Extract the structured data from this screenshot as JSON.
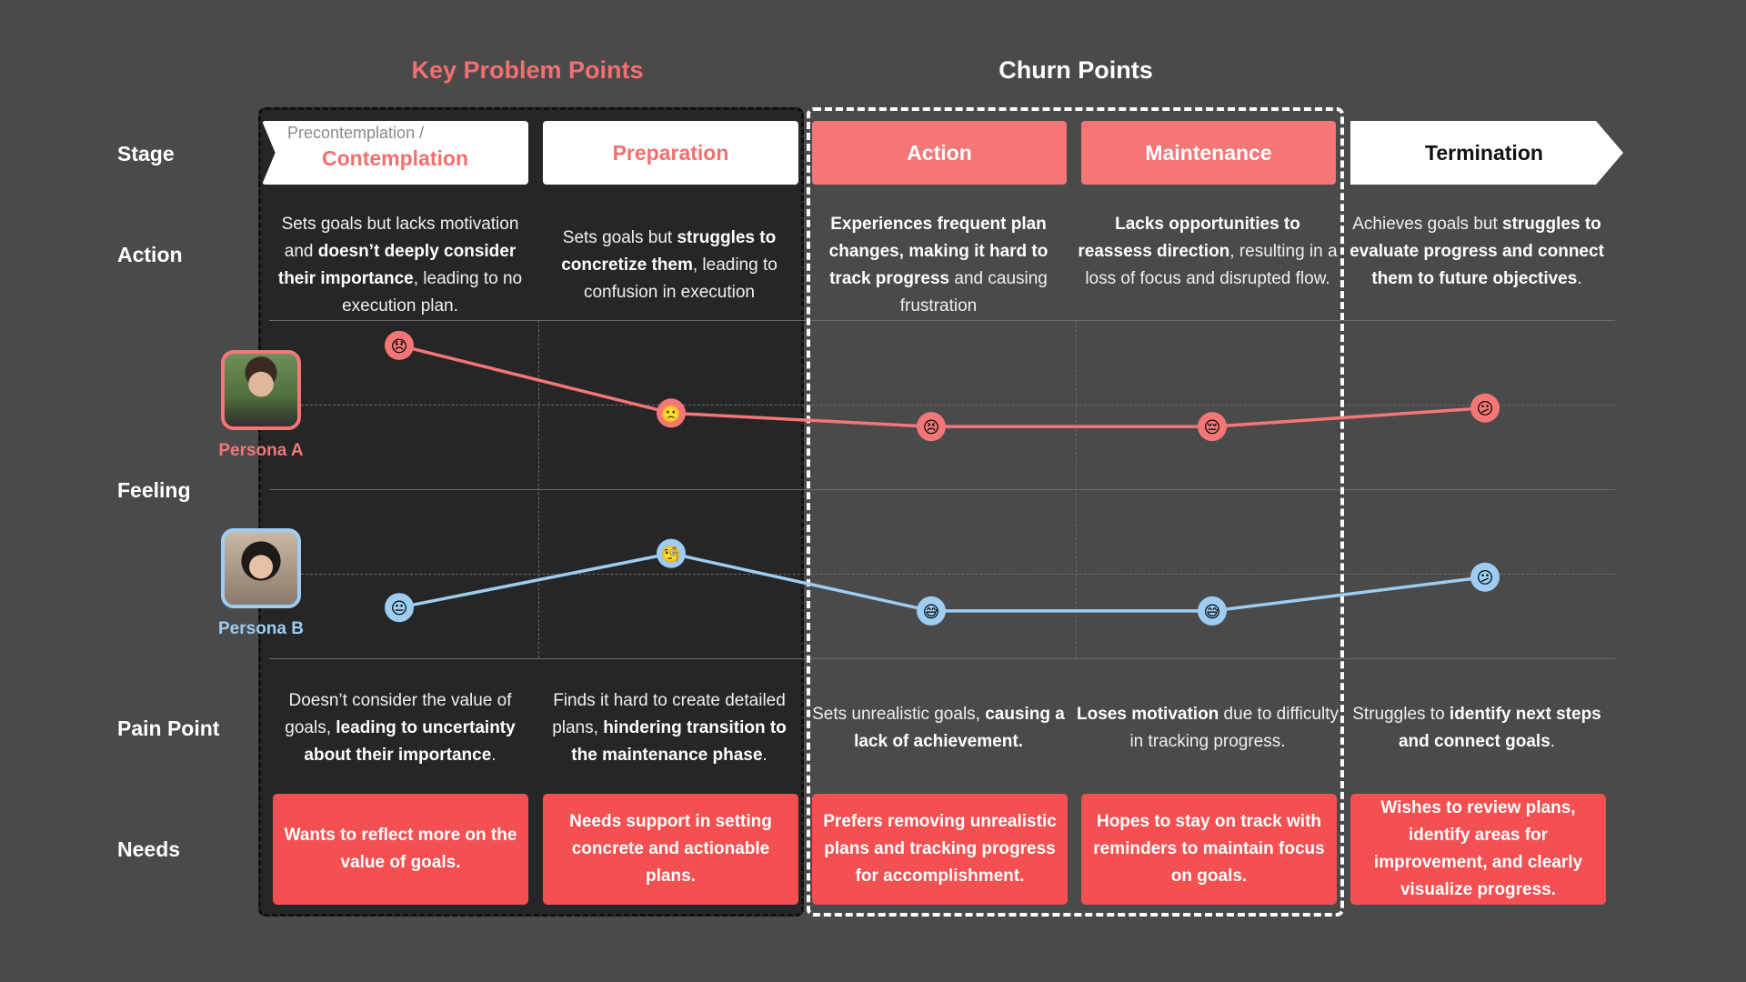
{
  "sections": {
    "key_problem": "Key Problem Points",
    "churn": "Churn Points"
  },
  "row_labels": {
    "stage": "Stage",
    "action": "Action",
    "feeling": "Feeling",
    "pain": "Pain Point",
    "needs": "Needs"
  },
  "stages": [
    {
      "sub": "Precontemplation /",
      "name": "Contemplation"
    },
    {
      "name": "Preparation"
    },
    {
      "name": "Action"
    },
    {
      "name": "Maintenance"
    },
    {
      "name": "Termination"
    }
  ],
  "actions": [
    "Sets goals but lacks motivation and <b>doesn’t deeply consider their importance</b>, leading to no execution plan.",
    "Sets goals but <b>struggles to concretize them</b>, leading to confusion in execution",
    "<b>Experiences frequent plan changes, making it hard to track progress</b> and causing frustration",
    "<b>Lacks opportunities to reassess direction</b>, resulting in a loss of focus and disrupted flow.",
    "Achieves goals but <b>struggles to evaluate progress and connect them to future objectives</b>."
  ],
  "personas": [
    {
      "name": "Persona A",
      "color": "#f47676"
    },
    {
      "name": "Persona B",
      "color": "#9dcdf2"
    }
  ],
  "pain_points": [
    "Doesn’t consider the value of goals, <b>leading to uncertainty about their importance</b>.",
    "Finds it hard to create detailed plans, <b>hindering transition to the maintenance phase</b>.",
    "Sets unrealistic goals, <b>causing a lack of achievement.</b>",
    "<b>Loses motivation</b> due to difficulty in tracking progress.",
    "Struggles to <b>identify next steps and connect goals</b>."
  ],
  "needs": [
    "Wants to reflect more on the value of goals.",
    "Needs support in setting concrete and actionable plans.",
    "Prefers removing unrealistic plans and tracking progress for accomplishment.",
    "Hopes to stay on track with reminders to maintain focus on goals.",
    "Wishes to review plans, identify areas for improvement, and clearly visualize progress."
  ],
  "chart_data": {
    "type": "line",
    "categories": [
      "Contemplation",
      "Preparation",
      "Action",
      "Maintenance",
      "Termination"
    ],
    "ylim": [
      0,
      1
    ],
    "series": [
      {
        "name": "Persona A",
        "color": "#f47676",
        "values": [
          0.85,
          0.45,
          0.37,
          0.37,
          0.48
        ],
        "emojis": [
          "😞",
          "🙁",
          "😣",
          "😔",
          "😕"
        ]
      },
      {
        "name": "Persona B",
        "color": "#9dcdf2",
        "values": [
          0.3,
          0.62,
          0.28,
          0.28,
          0.48
        ],
        "emojis": [
          "😐",
          "🧐",
          "😅",
          "😅",
          "😕"
        ]
      }
    ]
  }
}
